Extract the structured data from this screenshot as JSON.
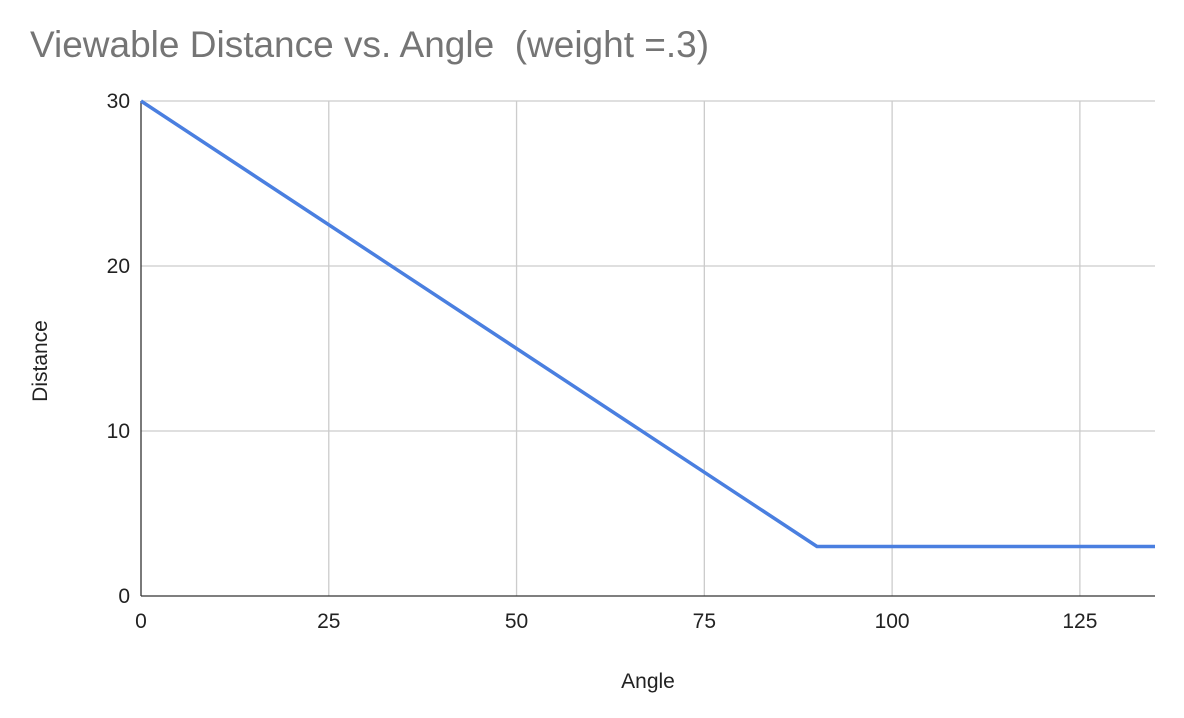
{
  "chart_data": {
    "type": "line",
    "title": "Viewable Distance vs. Angle  (weight =.3)",
    "xlabel": "Angle",
    "ylabel": "Distance",
    "xlim": [
      0,
      135
    ],
    "ylim": [
      0,
      30
    ],
    "x_ticks": [
      0,
      25,
      50,
      75,
      100,
      125
    ],
    "y_ticks": [
      0,
      10,
      20,
      30
    ],
    "grid": true,
    "legend": "none",
    "series": [
      {
        "color": "#4a7fe0",
        "x": [
          0,
          90,
          135
        ],
        "y": [
          30,
          3,
          3
        ]
      }
    ]
  }
}
